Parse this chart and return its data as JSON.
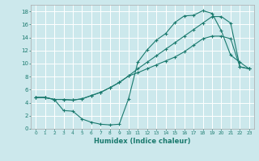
{
  "title": "",
  "xlabel": "Humidex (Indice chaleur)",
  "bg_color": "#cce8ec",
  "line_color": "#1a7a6e",
  "grid_color": "#ffffff",
  "xlim": [
    -0.5,
    23.5
  ],
  "ylim": [
    0,
    19
  ],
  "xticks": [
    0,
    1,
    2,
    3,
    4,
    5,
    6,
    7,
    8,
    9,
    10,
    11,
    12,
    13,
    14,
    15,
    16,
    17,
    18,
    19,
    20,
    21,
    22,
    23
  ],
  "yticks": [
    0,
    2,
    4,
    6,
    8,
    10,
    12,
    14,
    16,
    18
  ],
  "line1_x": [
    0,
    1,
    2,
    3,
    4,
    5,
    6,
    7,
    8,
    9,
    10,
    11,
    12,
    13,
    14,
    15,
    16,
    17,
    18,
    19,
    20,
    21,
    22,
    23
  ],
  "line1_y": [
    4.8,
    4.8,
    4.5,
    4.5,
    4.4,
    4.6,
    5.1,
    5.6,
    6.3,
    7.1,
    8.1,
    9.2,
    10.2,
    11.2,
    12.2,
    13.2,
    14.2,
    15.2,
    16.2,
    17.2,
    17.2,
    16.2,
    9.5,
    9.2
  ],
  "line2_x": [
    0,
    1,
    2,
    3,
    4,
    5,
    6,
    7,
    8,
    9,
    10,
    11,
    12,
    13,
    14,
    15,
    16,
    17,
    18,
    19,
    20,
    21,
    22,
    23
  ],
  "line2_y": [
    4.8,
    4.8,
    4.5,
    2.8,
    2.7,
    1.5,
    1.0,
    0.7,
    0.6,
    0.7,
    4.6,
    10.2,
    12.1,
    13.6,
    14.6,
    16.3,
    17.3,
    17.4,
    18.1,
    17.7,
    15.0,
    11.3,
    10.2,
    9.2
  ],
  "line3_x": [
    0,
    1,
    2,
    3,
    4,
    5,
    6,
    7,
    8,
    9,
    10,
    11,
    12,
    13,
    14,
    15,
    16,
    17,
    18,
    19,
    20,
    21,
    22,
    23
  ],
  "line3_y": [
    4.8,
    4.8,
    4.5,
    4.5,
    4.4,
    4.6,
    5.1,
    5.6,
    6.3,
    7.1,
    8.1,
    8.6,
    9.2,
    9.8,
    10.4,
    11.0,
    11.8,
    12.8,
    13.8,
    14.2,
    14.2,
    13.8,
    9.5,
    9.2
  ]
}
